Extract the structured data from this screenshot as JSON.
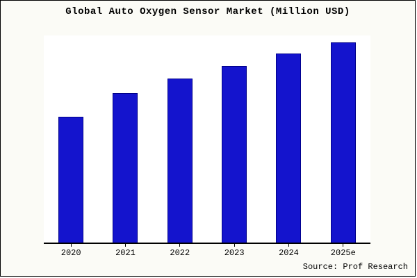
{
  "title": "Global Auto Oxygen Sensor Market (Million USD)",
  "source": "Source: Prof Research",
  "colors": {
    "bar_fill": "#1414cd",
    "bar_border": "#00008b",
    "background": "#fbfbf6",
    "plot_background": "#ffffff",
    "axis": "#000000"
  },
  "chart_data": {
    "type": "bar",
    "title": "Global Auto Oxygen Sensor Market (Million USD)",
    "categories": [
      "2020",
      "2021",
      "2022",
      "2023",
      "2024",
      "2025e"
    ],
    "values": [
      188,
      224,
      246,
      264,
      283,
      300
    ],
    "xlabel": "",
    "ylabel": "",
    "ylim": [
      0,
      310
    ],
    "grid": false,
    "legend": false,
    "bar_color": "#1414cd",
    "annotation": "Source: Prof Research"
  }
}
